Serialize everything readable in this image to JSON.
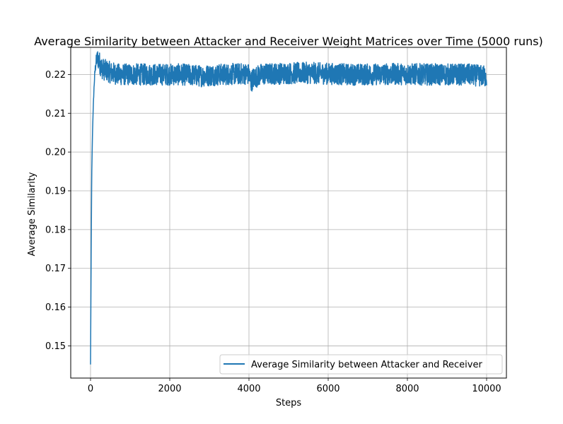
{
  "chart_data": {
    "type": "line",
    "title": "Average Similarity between Attacker and Receiver Weight Matrices over Time (5000 runs)",
    "xlabel": "Steps",
    "ylabel": "Average Similarity",
    "xlim": [
      -500,
      10500
    ],
    "ylim": [
      0.1417,
      0.227
    ],
    "xticks": [
      0,
      2000,
      4000,
      6000,
      8000,
      10000
    ],
    "yticks": [
      0.15,
      0.16,
      0.17,
      0.18,
      0.19,
      0.2,
      0.21,
      0.22
    ],
    "xtick_labels": [
      "0",
      "2000",
      "4000",
      "6000",
      "8000",
      "10000"
    ],
    "ytick_labels": [
      "0.15",
      "0.16",
      "0.17",
      "0.18",
      "0.19",
      "0.20",
      "0.21",
      "0.22"
    ],
    "grid": true,
    "legend_position": "lower-right",
    "colors": {
      "series": "#1f77b4",
      "grid": "#b0b0b0",
      "axes": "#000000"
    },
    "series": [
      {
        "name": "Average Similarity between Attacker and Receiver",
        "x": [
          0,
          15,
          30,
          50,
          70,
          90,
          110,
          130,
          150,
          180,
          200,
          230,
          260,
          300,
          350,
          400,
          450,
          500,
          600,
          700,
          800,
          1000,
          1200,
          1500,
          1800,
          2000,
          2300,
          2600,
          2800,
          3000,
          3300,
          3600,
          3900,
          4000,
          4050,
          4100,
          4300,
          4600,
          5000,
          5500,
          6000,
          6500,
          7000,
          7500,
          8000,
          8500,
          9000,
          9500,
          10000
        ],
        "y": [
          0.1452,
          0.172,
          0.194,
          0.205,
          0.212,
          0.217,
          0.2205,
          0.2225,
          0.2238,
          0.2242,
          0.2238,
          0.223,
          0.2222,
          0.2215,
          0.2212,
          0.221,
          0.2208,
          0.2205,
          0.2203,
          0.22,
          0.22,
          0.22,
          0.22,
          0.22,
          0.22,
          0.22,
          0.22,
          0.2198,
          0.2196,
          0.2198,
          0.22,
          0.2201,
          0.2202,
          0.22,
          0.218,
          0.219,
          0.22,
          0.2202,
          0.2203,
          0.2204,
          0.2202,
          0.22,
          0.22,
          0.2201,
          0.2201,
          0.22,
          0.22,
          0.22,
          0.2195
        ],
        "noise_band": 0.0028
      }
    ]
  }
}
